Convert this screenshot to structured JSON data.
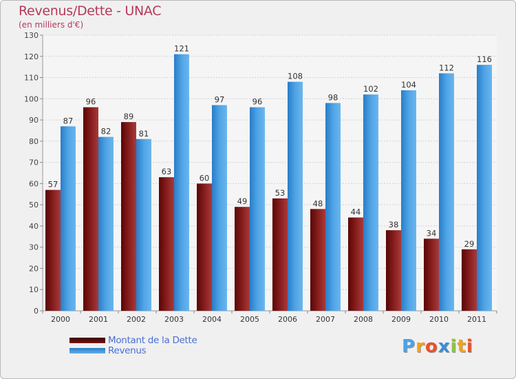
{
  "header": {
    "title": "Revenus/Dette - UNAC",
    "subtitle": "(en milliers d'€)"
  },
  "legend": {
    "items": [
      {
        "label": "Montant de la Dette",
        "color": "#7a1010"
      },
      {
        "label": "Revenus",
        "color": "#4a9fe2"
      }
    ]
  },
  "logo": {
    "text": "Proxiti",
    "letters": [
      {
        "ch": "P",
        "color": "#4aa3e8"
      },
      {
        "ch": "r",
        "color": "#f2a21a"
      },
      {
        "ch": "o",
        "color": "#e8532b"
      },
      {
        "ch": "x",
        "color": "#3a8fd8"
      },
      {
        "ch": "i",
        "color": "#8cc63f"
      },
      {
        "ch": "t",
        "color": "#f2a21a"
      },
      {
        "ch": "i",
        "color": "#e8532b"
      }
    ]
  },
  "chart_data": {
    "type": "bar",
    "title": "Revenus/Dette - UNAC",
    "subtitle": "(en milliers d'€)",
    "xlabel": "",
    "ylabel": "",
    "ylim": [
      0,
      130
    ],
    "yticks": [
      0,
      10,
      20,
      30,
      40,
      50,
      60,
      70,
      80,
      90,
      100,
      110,
      120,
      130
    ],
    "grid": true,
    "legend_position": "bottom-left",
    "categories": [
      "2000",
      "2001",
      "2002",
      "2003",
      "2004",
      "2005",
      "2006",
      "2007",
      "2008",
      "2009",
      "2010",
      "2011"
    ],
    "series": [
      {
        "name": "Montant de la Dette",
        "color": "#7a1010",
        "values": [
          57,
          96,
          89,
          63,
          60,
          49,
          53,
          48,
          44,
          38,
          34,
          29
        ]
      },
      {
        "name": "Revenus",
        "color": "#4a9fe2",
        "values": [
          87,
          82,
          81,
          121,
          97,
          96,
          108,
          98,
          102,
          104,
          112,
          116
        ]
      }
    ]
  }
}
